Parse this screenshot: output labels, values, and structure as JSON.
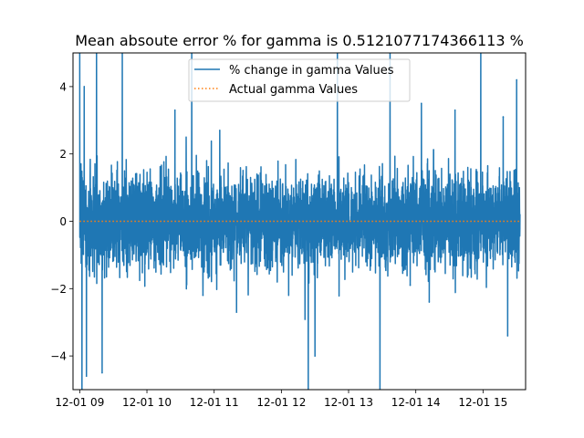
{
  "chart_data": {
    "type": "line",
    "title": "Mean absoute error % for gamma is 0.5121077174366113 %",
    "xlabel": "",
    "ylabel": "",
    "xlim": [
      "12-01 08:54",
      "15:38"
    ],
    "ylim": [
      -5,
      5
    ],
    "x_ticks": [
      "12-01 09",
      "12-01 10",
      "12-01 11",
      "12-01 12",
      "12-01 13",
      "12-01 14",
      "12-01 15"
    ],
    "y_ticks": [
      -4,
      -2,
      0,
      2,
      4
    ],
    "x_range": [
      "12-01 09:00",
      "15:33"
    ],
    "grid": false,
    "legend": {
      "placement": "upper center",
      "entries": [
        "% change in gamma Values",
        "Actual gamma Values"
      ]
    },
    "series": [
      {
        "name": "% change in gamma Values",
        "style": "solid",
        "color": "#1f77b4",
        "typical_band": [
          -1.5,
          1.5
        ],
        "spikes": [
          {
            "x": "09:00",
            "y": 5.2
          },
          {
            "x": "09:02",
            "y": -5.4
          },
          {
            "x": "09:04",
            "y": 4.0
          },
          {
            "x": "09:06",
            "y": -4.6
          },
          {
            "x": "09:15",
            "y": 5.3
          },
          {
            "x": "09:20",
            "y": -4.5
          },
          {
            "x": "09:38",
            "y": 5.2
          },
          {
            "x": "10:25",
            "y": 3.3
          },
          {
            "x": "10:40",
            "y": 5.1
          },
          {
            "x": "10:50",
            "y": -2.2
          },
          {
            "x": "11:05",
            "y": 2.7
          },
          {
            "x": "11:20",
            "y": -2.7
          },
          {
            "x": "12:24",
            "y": -5.2
          },
          {
            "x": "12:30",
            "y": -4.0
          },
          {
            "x": "12:50",
            "y": 5.2
          },
          {
            "x": "13:28",
            "y": -5.2
          },
          {
            "x": "13:37",
            "y": 5.1
          },
          {
            "x": "13:55",
            "y": -1.9
          },
          {
            "x": "14:05",
            "y": 3.5
          },
          {
            "x": "14:12",
            "y": -2.4
          },
          {
            "x": "14:35",
            "y": 3.3
          },
          {
            "x": "14:58",
            "y": 5.2
          },
          {
            "x": "15:18",
            "y": 3.1
          },
          {
            "x": "15:22",
            "y": -3.4
          },
          {
            "x": "15:30",
            "y": 4.2
          }
        ]
      },
      {
        "name": "Actual gamma Values",
        "style": "dotted",
        "color": "#ff7f0e",
        "values": [
          {
            "x": "09:00",
            "y": 0
          },
          {
            "x": "15:33",
            "y": 0
          }
        ]
      }
    ]
  }
}
